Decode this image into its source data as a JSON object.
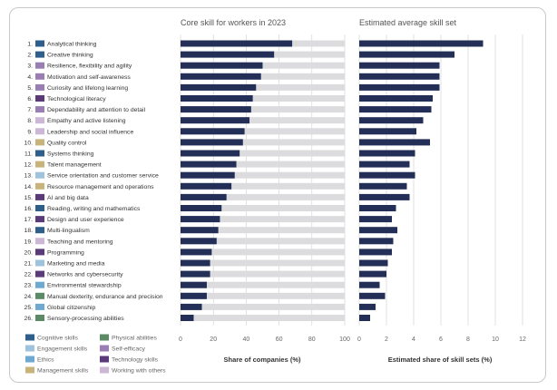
{
  "chart_data": [
    {
      "type": "bar",
      "orientation": "horizontal",
      "title": "Core skill for workers in 2023",
      "xlabel": "Share of companies (%)",
      "ylabel": "",
      "xlim": [
        0,
        100
      ],
      "xticks": [
        0,
        20,
        40,
        60,
        80,
        100
      ],
      "grid": "vertical",
      "background_track": true,
      "categories": [
        "Analytical thinking",
        "Creative thinking",
        "Resilience, flexibility and agility",
        "Motivation and self-awareness",
        "Curiosity and lifelong learning",
        "Technological literacy",
        "Dependability and attention to detail",
        "Empathy and active listening",
        "Leadership and social influence",
        "Quality control",
        "Systems thinking",
        "Talent management",
        "Service orientation and customer service",
        "Resource management and operations",
        "AI and big data",
        "Reading, writing and mathematics",
        "Design and user experience",
        "Multi-lingualism",
        "Teaching and mentoring",
        "Programming",
        "Marketing and media",
        "Networks and cybersecurity",
        "Environmental stewardship",
        "Manual dexterity, endurance and precision",
        "Global citizenship",
        "Sensory-processing abilities"
      ],
      "values": [
        68,
        57,
        50,
        49,
        46,
        44,
        43,
        42,
        39,
        38,
        36,
        34,
        33,
        31,
        28,
        25,
        24,
        23,
        22,
        19,
        18,
        18,
        16,
        16,
        13,
        8
      ]
    },
    {
      "type": "bar",
      "orientation": "horizontal",
      "title": "Estimated average skill set",
      "xlabel": "Estimated share of skill sets (%)",
      "ylabel": "",
      "xlim": [
        0,
        12
      ],
      "xticks": [
        0,
        2,
        4,
        6,
        8,
        10,
        12
      ],
      "grid": "vertical",
      "values": [
        9.1,
        7.0,
        5.9,
        5.9,
        5.9,
        5.4,
        5.3,
        4.7,
        4.2,
        5.2,
        4.1,
        3.7,
        4.1,
        3.5,
        3.7,
        2.7,
        2.4,
        2.8,
        2.5,
        2.4,
        2.1,
        2.0,
        1.5,
        1.9,
        1.2,
        0.8
      ]
    }
  ],
  "rank_labels": [
    "1.",
    "2.",
    "3.",
    "4.",
    "5.",
    "6.",
    "7.",
    "8.",
    "9.",
    "10.",
    "11.",
    "12.",
    "13.",
    "14.",
    "15.",
    "16.",
    "17.",
    "18.",
    "19.",
    "20.",
    "21.",
    "22.",
    "23.",
    "24.",
    "25.",
    "26."
  ],
  "category_groups": [
    "Cognitive skills",
    "Cognitive skills",
    "Self-efficacy",
    "Self-efficacy",
    "Self-efficacy",
    "Technology skills",
    "Self-efficacy",
    "Working with others",
    "Working with others",
    "Management skills",
    "Cognitive skills",
    "Management skills",
    "Engagement skills",
    "Management skills",
    "Technology skills",
    "Cognitive skills",
    "Technology skills",
    "Cognitive skills",
    "Working with others",
    "Technology skills",
    "Engagement skills",
    "Technology skills",
    "Ethics",
    "Physical abilities",
    "Ethics",
    "Physical abilities"
  ],
  "legend": [
    {
      "label": "Cognitive skills",
      "color": "#2e5f8a"
    },
    {
      "label": "Engagement skills",
      "color": "#9fc3dc"
    },
    {
      "label": "Ethics",
      "color": "#6ea9d2"
    },
    {
      "label": "Management skills",
      "color": "#c8b47a"
    },
    {
      "label": "Physical abilities",
      "color": "#5b8a64"
    },
    {
      "label": "Self-efficacy",
      "color": "#9a7eb3"
    },
    {
      "label": "Technology skills",
      "color": "#5a3a78"
    },
    {
      "label": "Working with others",
      "color": "#cdb7d6"
    }
  ],
  "colors": {
    "bar": "#242f58",
    "track": "#dcdcdf",
    "grid": "#cfcfcf",
    "text": "#333333",
    "axis_text": "#666666"
  }
}
